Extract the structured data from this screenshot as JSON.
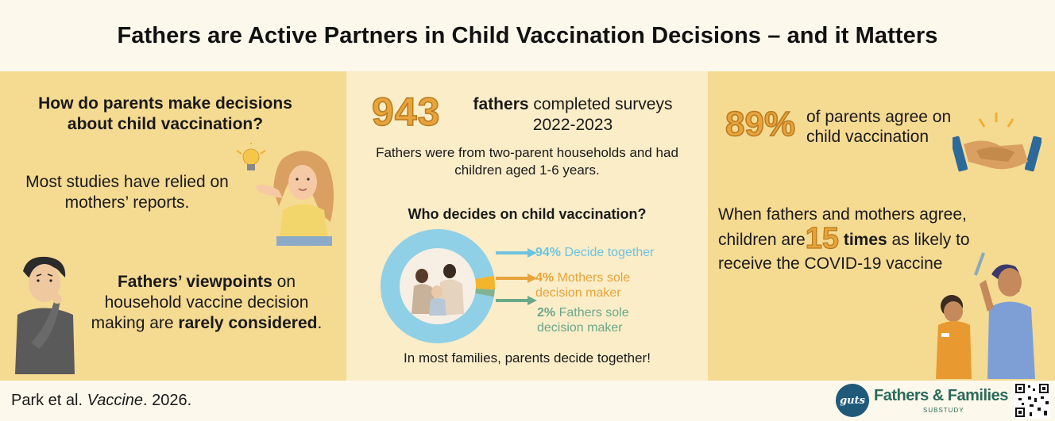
{
  "title": "Fathers are Active Partners in Child Vaccination Decisions – and it Matters",
  "left": {
    "question": "How do parents make decisions about child vaccination?",
    "mothers": "Most studies have relied on mothers’ reports.",
    "fathers_bold1": "Fathers’ viewpoints",
    "fathers_text1": " on household vaccine decision making are ",
    "fathers_bold2": "rarely considered",
    "fathers_text2": "."
  },
  "middle": {
    "number": "943",
    "fathers_bold": "fathers",
    "fathers_text": " completed surveys 2022-2023",
    "desc": "Fathers were from two-parent households and had children aged 1-6 years.",
    "who": "Who decides on child vaccination?",
    "legend": [
      {
        "pct": "94%",
        "label": " Decide together",
        "color": "#6fc3df"
      },
      {
        "pct": "4%",
        "label": " Mothers sole decision maker",
        "color": "#e8a33a"
      },
      {
        "pct": "2%",
        "label": " Fathers sole decision maker",
        "color": "#6aa88a"
      }
    ],
    "bottom": "In most families, parents decide together!"
  },
  "chart_data": {
    "type": "pie",
    "categories": [
      "Decide together",
      "Mothers sole decision maker",
      "Fathers sole decision maker"
    ],
    "values": [
      94,
      4,
      2
    ],
    "colors": [
      "#8fd0e6",
      "#f2b52c",
      "#7fb394"
    ],
    "title": "Who decides on child vaccination?"
  },
  "right": {
    "number": "89%",
    "agree": "of parents agree on child vaccination",
    "when1": "When fathers and mothers agree, children are",
    "num15": "15",
    "times": "times",
    "when2": " as likely to receive the COVID-19 vaccine"
  },
  "footer": {
    "cite_pre": "Park et al. ",
    "cite_journal": "Vaccine",
    "cite_post": ". 2026."
  },
  "logo": {
    "circle": "guts",
    "text": "Fathers & Families",
    "sub": "SUBSTUDY"
  }
}
